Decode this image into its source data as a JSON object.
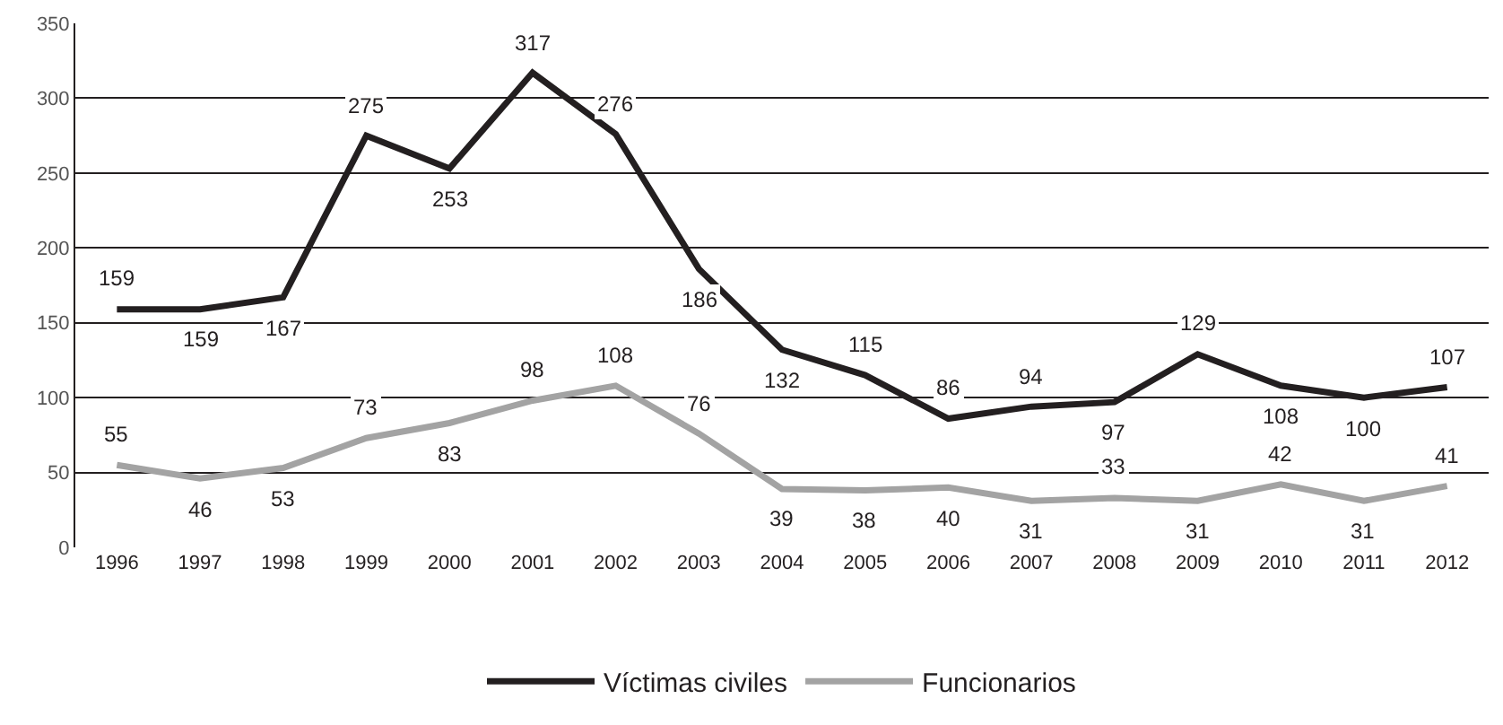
{
  "chart_data": {
    "type": "line",
    "categories": [
      "1996",
      "1997",
      "1998",
      "1999",
      "2000",
      "2001",
      "2002",
      "2003",
      "2004",
      "2005",
      "2006",
      "2007",
      "2008",
      "2009",
      "2010",
      "2011",
      "2012"
    ],
    "series": [
      {
        "name": "Víctimas civiles",
        "color": "#231f20",
        "values": [
          159,
          159,
          167,
          275,
          253,
          317,
          276,
          186,
          132,
          115,
          86,
          94,
          97,
          129,
          108,
          100,
          107
        ]
      },
      {
        "name": "Funcionarios",
        "color": "#a3a3a3",
        "values": [
          55,
          46,
          53,
          73,
          83,
          98,
          108,
          76,
          39,
          38,
          40,
          31,
          33,
          31,
          42,
          31,
          41
        ]
      }
    ],
    "ylim": [
      0,
      350
    ],
    "yticks": [
      0,
      50,
      100,
      150,
      200,
      250,
      300,
      350
    ],
    "grid": "y",
    "legend": "bottom",
    "data_labels": true,
    "marker": "none",
    "line_style": "solid"
  }
}
